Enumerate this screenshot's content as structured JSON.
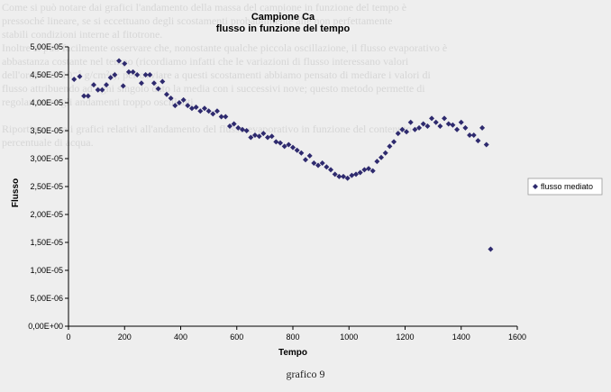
{
  "bleed_text": [
    "Come si può notare dai grafici l'andamento della massa del campione in funzione del tempo è",
    "pressoché lineare, se si eccettuano degli scostamenti probabilmente alle non perfettamente",
    "stabili condizioni interne al fitotrone.",
    "Inoltre si può facilmente osservare che, nonostante qualche piccola oscillazione, il flusso evaporativo è",
    "abbastanza costante nel tempo (ricordiamo infatti che le variazioni di flusso interessano valori",
    "dell'ordine di 10⁻⁵ g/cm²s); per ovviare a questi scostamenti abbiamo pensato di mediare i valori di",
    "flusso attribuendo ad ogni singolo dato la media con i successivi nove; questo metodo permette di",
    "regolarizzare gli andamenti troppo oscillanti.",
    "",
    "Riportiamo ora i grafici relativi all'andamento del flusso evaporativo in funzione del contenuto",
    "percentuale di acqua."
  ],
  "caption": "grafico 9",
  "colors": {
    "marker": "#2e2a6e",
    "axis": "#000000"
  },
  "chart_data": {
    "type": "scatter",
    "title": "Campione Ca",
    "subtitle": "flusso in funzione del tempo",
    "xlabel": "Tempo",
    "ylabel": "Flusso",
    "xlim": [
      0,
      1600
    ],
    "ylim": [
      0,
      5e-05
    ],
    "x_ticks": [
      0,
      200,
      400,
      600,
      800,
      1000,
      1200,
      1400,
      1600
    ],
    "y_ticks": [
      {
        "value": 0,
        "label": "0,00E+00"
      },
      {
        "value": 5e-06,
        "label": "5,00E-06"
      },
      {
        "value": 1e-05,
        "label": "1,00E-05"
      },
      {
        "value": 1.5e-05,
        "label": "1,50E-05"
      },
      {
        "value": 2e-05,
        "label": "2,00E-05"
      },
      {
        "value": 2.5e-05,
        "label": "2,50E-05"
      },
      {
        "value": 3e-05,
        "label": "3,00E-05"
      },
      {
        "value": 3.5e-05,
        "label": "3,50E-05"
      },
      {
        "value": 4e-05,
        "label": "4,00E-05"
      },
      {
        "value": 4.5e-05,
        "label": "4,50E-05"
      },
      {
        "value": 5e-05,
        "label": "5,00E-05"
      }
    ],
    "grid": false,
    "legend_position": "right",
    "series": [
      {
        "name": "flusso mediato",
        "points": [
          [
            20,
            4.42e-05
          ],
          [
            40,
            4.47e-05
          ],
          [
            55,
            4.12e-05
          ],
          [
            70,
            4.12e-05
          ],
          [
            90,
            4.32e-05
          ],
          [
            105,
            4.23e-05
          ],
          [
            120,
            4.23e-05
          ],
          [
            135,
            4.32e-05
          ],
          [
            150,
            4.45e-05
          ],
          [
            165,
            4.5e-05
          ],
          [
            180,
            4.75e-05
          ],
          [
            195,
            4.3e-05
          ],
          [
            200,
            4.7e-05
          ],
          [
            215,
            4.55e-05
          ],
          [
            230,
            4.55e-05
          ],
          [
            245,
            4.5e-05
          ],
          [
            260,
            4.35e-05
          ],
          [
            275,
            4.5e-05
          ],
          [
            290,
            4.5e-05
          ],
          [
            305,
            4.35e-05
          ],
          [
            320,
            4.25e-05
          ],
          [
            335,
            4.38e-05
          ],
          [
            350,
            4.15e-05
          ],
          [
            365,
            4.08e-05
          ],
          [
            380,
            3.95e-05
          ],
          [
            395,
            4e-05
          ],
          [
            410,
            4.05e-05
          ],
          [
            425,
            3.95e-05
          ],
          [
            440,
            3.9e-05
          ],
          [
            455,
            3.92e-05
          ],
          [
            470,
            3.85e-05
          ],
          [
            485,
            3.9e-05
          ],
          [
            500,
            3.85e-05
          ],
          [
            515,
            3.8e-05
          ],
          [
            530,
            3.85e-05
          ],
          [
            545,
            3.75e-05
          ],
          [
            560,
            3.75e-05
          ],
          [
            575,
            3.58e-05
          ],
          [
            590,
            3.62e-05
          ],
          [
            605,
            3.55e-05
          ],
          [
            620,
            3.52e-05
          ],
          [
            635,
            3.5e-05
          ],
          [
            650,
            3.38e-05
          ],
          [
            665,
            3.42e-05
          ],
          [
            680,
            3.4e-05
          ],
          [
            695,
            3.45e-05
          ],
          [
            710,
            3.38e-05
          ],
          [
            725,
            3.4e-05
          ],
          [
            740,
            3.3e-05
          ],
          [
            755,
            3.28e-05
          ],
          [
            770,
            3.22e-05
          ],
          [
            785,
            3.25e-05
          ],
          [
            800,
            3.2e-05
          ],
          [
            815,
            3.15e-05
          ],
          [
            830,
            3.1e-05
          ],
          [
            845,
            2.98e-05
          ],
          [
            860,
            3.05e-05
          ],
          [
            875,
            2.92e-05
          ],
          [
            890,
            2.88e-05
          ],
          [
            905,
            2.92e-05
          ],
          [
            920,
            2.85e-05
          ],
          [
            935,
            2.8e-05
          ],
          [
            950,
            2.72e-05
          ],
          [
            965,
            2.68e-05
          ],
          [
            980,
            2.68e-05
          ],
          [
            995,
            2.65e-05
          ],
          [
            1010,
            2.7e-05
          ],
          [
            1025,
            2.72e-05
          ],
          [
            1040,
            2.75e-05
          ],
          [
            1055,
            2.8e-05
          ],
          [
            1070,
            2.82e-05
          ],
          [
            1085,
            2.78e-05
          ],
          [
            1100,
            2.95e-05
          ],
          [
            1115,
            3.02e-05
          ],
          [
            1130,
            3.1e-05
          ],
          [
            1145,
            3.22e-05
          ],
          [
            1160,
            3.3e-05
          ],
          [
            1175,
            3.45e-05
          ],
          [
            1190,
            3.52e-05
          ],
          [
            1205,
            3.48e-05
          ],
          [
            1220,
            3.65e-05
          ],
          [
            1235,
            3.52e-05
          ],
          [
            1250,
            3.55e-05
          ],
          [
            1265,
            3.62e-05
          ],
          [
            1280,
            3.58e-05
          ],
          [
            1295,
            3.72e-05
          ],
          [
            1310,
            3.65e-05
          ],
          [
            1325,
            3.58e-05
          ],
          [
            1340,
            3.72e-05
          ],
          [
            1355,
            3.62e-05
          ],
          [
            1370,
            3.6e-05
          ],
          [
            1385,
            3.52e-05
          ],
          [
            1400,
            3.65e-05
          ],
          [
            1415,
            3.55e-05
          ],
          [
            1430,
            3.42e-05
          ],
          [
            1445,
            3.42e-05
          ],
          [
            1460,
            3.32e-05
          ],
          [
            1475,
            3.55e-05
          ],
          [
            1490,
            3.25e-05
          ],
          [
            1505,
            1.38e-05
          ]
        ]
      }
    ]
  }
}
